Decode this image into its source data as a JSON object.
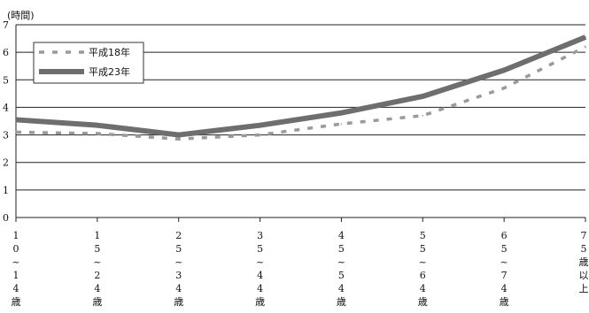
{
  "chart_data": {
    "type": "line",
    "ylabel": "(時間)",
    "ylim": [
      0,
      7
    ],
    "yticks": [
      "0",
      "1",
      "2",
      "3",
      "4",
      "5",
      "6",
      "7"
    ],
    "grid": "horizontal",
    "legend_position": "top-left",
    "categories": [
      "10~14歳",
      "15~24歳",
      "25~34歳",
      "35~44歳",
      "45~54歳",
      "55~64歳",
      "65~74歳",
      "75歳以上"
    ],
    "category_labels": [
      [
        "1",
        "0",
        "~",
        "1",
        "4",
        "歳"
      ],
      [
        "1",
        "5",
        "~",
        "2",
        "4",
        "歳"
      ],
      [
        "2",
        "5",
        "~",
        "3",
        "4",
        "歳"
      ],
      [
        "3",
        "5",
        "~",
        "4",
        "4",
        "歳"
      ],
      [
        "4",
        "5",
        "~",
        "5",
        "4",
        "歳"
      ],
      [
        "5",
        "5",
        "~",
        "6",
        "4",
        "歳"
      ],
      [
        "6",
        "5",
        "~",
        "7",
        "4",
        "歳"
      ],
      [
        "7",
        "5",
        "歳",
        "以",
        "上"
      ]
    ],
    "series": [
      {
        "name": "平成18年",
        "values": [
          3.1,
          3.05,
          2.85,
          3.0,
          3.4,
          3.7,
          4.7,
          6.2
        ],
        "color": "#9a9a9a",
        "style": "dashed"
      },
      {
        "name": "平成23年",
        "values": [
          3.55,
          3.35,
          3.0,
          3.35,
          3.8,
          4.4,
          5.35,
          6.55
        ],
        "color": "#6e6e6e",
        "style": "solid"
      }
    ]
  }
}
